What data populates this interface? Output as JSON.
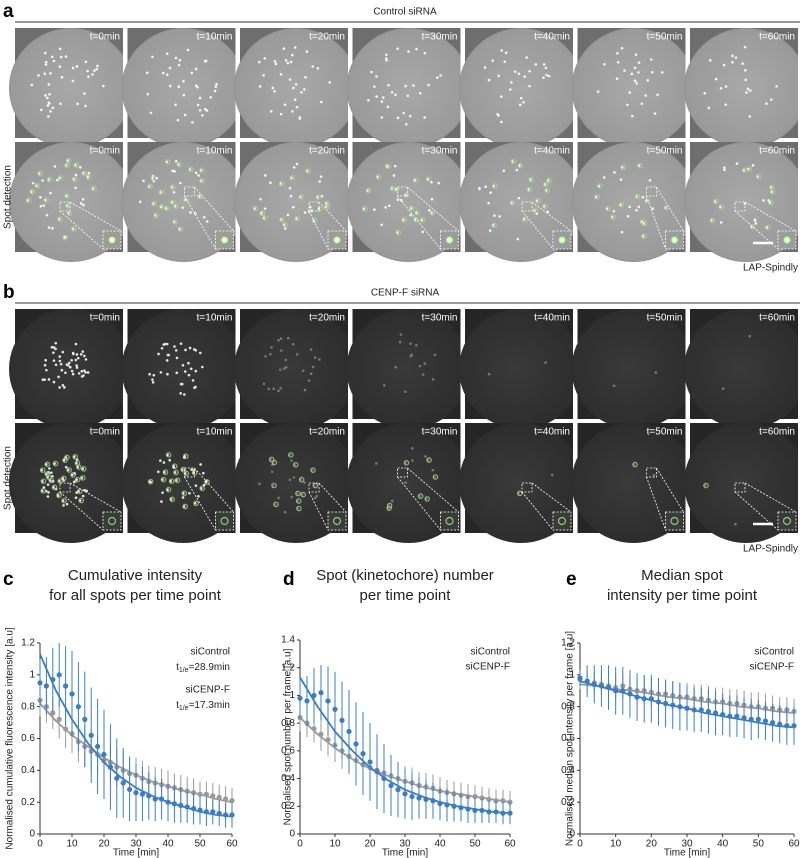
{
  "panels": {
    "a": {
      "label": "a",
      "title": "Control siRNA",
      "row_label": "Spot detection",
      "times": [
        "t=0min",
        "t=10min",
        "t=20min",
        "t=30min",
        "t=40min",
        "t=50min",
        "t=60min"
      ],
      "caption": "LAP-Spindly"
    },
    "b": {
      "label": "b",
      "title": "CENP-F siRNA",
      "row_label": "Spot detection",
      "times": [
        "t=0min",
        "t=10min",
        "t=20min",
        "t=30min",
        "t=40min",
        "t=50min",
        "t=60min"
      ],
      "caption": "LAP-Spindly"
    }
  },
  "chart_data": [
    {
      "type": "scatter",
      "label": "c",
      "title_lines": [
        "Cumulative intensity",
        "for all spots per time point"
      ],
      "xlabel": "Time [min]",
      "ylabel": "Normalised cumulative fluorescence intensity [a.u]",
      "xlim": [
        0,
        60
      ],
      "xticks": [
        0,
        10,
        20,
        30,
        40,
        50,
        60
      ],
      "ylim": [
        0,
        1.2
      ],
      "yticks": [
        0,
        0.2,
        0.4,
        0.6,
        0.8,
        1,
        1.2
      ],
      "x": [
        0,
        2,
        4,
        6,
        8,
        10,
        12,
        14,
        16,
        18,
        20,
        22,
        24,
        26,
        28,
        30,
        32,
        34,
        36,
        38,
        40,
        42,
        44,
        46,
        48,
        50,
        52,
        54,
        56,
        58,
        60
      ],
      "fit_x": [
        0,
        5,
        10,
        15,
        20,
        25,
        30,
        35,
        40,
        45,
        50,
        55,
        60
      ],
      "series": [
        {
          "name": "siControl",
          "color": "#9a9a9a",
          "half_life": {
            "symbol": "t",
            "subscript": "1/e",
            "text": "=28.9min"
          },
          "values": [
            0.84,
            0.8,
            0.76,
            0.72,
            0.66,
            0.63,
            0.58,
            0.55,
            0.52,
            0.5,
            0.46,
            0.45,
            0.42,
            0.4,
            0.38,
            0.37,
            0.35,
            0.33,
            0.32,
            0.31,
            0.3,
            0.29,
            0.28,
            0.27,
            0.26,
            0.25,
            0.25,
            0.24,
            0.23,
            0.22,
            0.21
          ],
          "errors": [
            0.1,
            0.1,
            0.1,
            0.12,
            0.12,
            0.12,
            0.13,
            0.13,
            0.13,
            0.12,
            0.12,
            0.12,
            0.12,
            0.12,
            0.11,
            0.11,
            0.11,
            0.1,
            0.1,
            0.1,
            0.1,
            0.09,
            0.09,
            0.09,
            0.09,
            0.08,
            0.08,
            0.08,
            0.08,
            0.08,
            0.08
          ],
          "fit": [
            0.82,
            0.71,
            0.62,
            0.55,
            0.48,
            0.42,
            0.37,
            0.33,
            0.3,
            0.27,
            0.25,
            0.22,
            0.2
          ]
        },
        {
          "name": "siCENP-F",
          "color": "#3b7cc4",
          "half_life": {
            "symbol": "t",
            "subscript": "1/e",
            "text": "=17.3min"
          },
          "values": [
            0.95,
            0.93,
            0.97,
            1.0,
            0.93,
            0.88,
            0.8,
            0.72,
            0.62,
            0.55,
            0.5,
            0.42,
            0.35,
            0.32,
            0.28,
            0.26,
            0.25,
            0.24,
            0.22,
            0.22,
            0.2,
            0.19,
            0.18,
            0.17,
            0.16,
            0.15,
            0.14,
            0.14,
            0.13,
            0.12,
            0.12
          ],
          "errors": [
            0.15,
            0.18,
            0.2,
            0.2,
            0.25,
            0.27,
            0.28,
            0.3,
            0.3,
            0.3,
            0.28,
            0.27,
            0.25,
            0.22,
            0.2,
            0.18,
            0.17,
            0.15,
            0.14,
            0.13,
            0.12,
            0.12,
            0.11,
            0.1,
            0.1,
            0.09,
            0.09,
            0.08,
            0.08,
            0.08,
            0.08
          ],
          "fit": [
            1.13,
            0.9,
            0.72,
            0.57,
            0.45,
            0.36,
            0.29,
            0.24,
            0.2,
            0.17,
            0.14,
            0.12,
            0.11
          ]
        }
      ]
    },
    {
      "type": "scatter",
      "label": "d",
      "title_lines": [
        "Spot (kinetochore) number",
        "per time point"
      ],
      "xlabel": "Time [min]",
      "ylabel": "Normalised spot number per frame [a.u]",
      "xlim": [
        0,
        60
      ],
      "xticks": [
        0,
        10,
        20,
        30,
        40,
        50,
        60
      ],
      "ylim": [
        0,
        1.4
      ],
      "yticks": [
        0,
        0.2,
        0.4,
        0.6,
        0.8,
        1,
        1.2,
        1.4
      ],
      "x": [
        0,
        2,
        4,
        6,
        8,
        10,
        12,
        14,
        16,
        18,
        20,
        22,
        24,
        26,
        28,
        30,
        32,
        34,
        36,
        38,
        40,
        42,
        44,
        46,
        48,
        50,
        52,
        54,
        56,
        58,
        60
      ],
      "fit_x": [
        0,
        5,
        10,
        15,
        20,
        25,
        30,
        35,
        40,
        45,
        50,
        55,
        60
      ],
      "series": [
        {
          "name": "siControl",
          "color": "#9a9a9a",
          "values": [
            0.84,
            0.8,
            0.76,
            0.72,
            0.68,
            0.64,
            0.6,
            0.56,
            0.53,
            0.5,
            0.48,
            0.46,
            0.44,
            0.42,
            0.4,
            0.38,
            0.37,
            0.35,
            0.34,
            0.33,
            0.31,
            0.3,
            0.29,
            0.28,
            0.27,
            0.27,
            0.26,
            0.25,
            0.24,
            0.24,
            0.23
          ],
          "errors": [
            0.1,
            0.1,
            0.1,
            0.12,
            0.12,
            0.12,
            0.13,
            0.13,
            0.13,
            0.12,
            0.12,
            0.12,
            0.12,
            0.12,
            0.11,
            0.11,
            0.11,
            0.1,
            0.1,
            0.1,
            0.1,
            0.09,
            0.09,
            0.09,
            0.09,
            0.08,
            0.08,
            0.08,
            0.08,
            0.08,
            0.08
          ],
          "fit": [
            0.84,
            0.72,
            0.62,
            0.54,
            0.47,
            0.42,
            0.38,
            0.34,
            0.31,
            0.29,
            0.27,
            0.25,
            0.23
          ]
        },
        {
          "name": "siCENP-F",
          "color": "#3b7cc4",
          "values": [
            0.98,
            0.96,
            1.0,
            1.02,
            0.96,
            0.9,
            0.82,
            0.74,
            0.65,
            0.58,
            0.52,
            0.45,
            0.4,
            0.35,
            0.32,
            0.29,
            0.27,
            0.26,
            0.25,
            0.24,
            0.22,
            0.21,
            0.2,
            0.19,
            0.18,
            0.17,
            0.17,
            0.16,
            0.16,
            0.15,
            0.15
          ],
          "errors": [
            0.15,
            0.18,
            0.2,
            0.2,
            0.25,
            0.27,
            0.28,
            0.3,
            0.3,
            0.3,
            0.28,
            0.27,
            0.25,
            0.22,
            0.2,
            0.18,
            0.17,
            0.15,
            0.14,
            0.13,
            0.12,
            0.12,
            0.11,
            0.1,
            0.1,
            0.09,
            0.09,
            0.08,
            0.08,
            0.08,
            0.08
          ],
          "fit": [
            1.13,
            0.92,
            0.74,
            0.6,
            0.48,
            0.39,
            0.32,
            0.27,
            0.23,
            0.2,
            0.18,
            0.16,
            0.15
          ]
        }
      ]
    },
    {
      "type": "scatter",
      "label": "e",
      "title_lines": [
        "Median spot",
        "intensity per time point"
      ],
      "xlabel": "Time [min]",
      "ylabel": "Normalised median spot intensity per frame [a.u]",
      "xlim": [
        0,
        60
      ],
      "xticks": [
        0,
        10,
        20,
        30,
        40,
        50,
        60
      ],
      "ylim": [
        0,
        1.2
      ],
      "yticks": [
        0,
        0.2,
        0.4,
        0.6,
        0.8,
        1,
        1.2
      ],
      "x": [
        0,
        2,
        4,
        6,
        8,
        10,
        12,
        14,
        16,
        18,
        20,
        22,
        24,
        26,
        28,
        30,
        32,
        34,
        36,
        38,
        40,
        42,
        44,
        46,
        48,
        50,
        52,
        54,
        56,
        58,
        60
      ],
      "fit_x": [
        0,
        5,
        10,
        15,
        20,
        25,
        30,
        35,
        40,
        45,
        50,
        55,
        60
      ],
      "series": [
        {
          "name": "siControl",
          "color": "#9a9a9a",
          "values": [
            0.97,
            0.96,
            0.95,
            0.94,
            0.93,
            0.92,
            0.93,
            0.91,
            0.9,
            0.9,
            0.89,
            0.88,
            0.88,
            0.87,
            0.86,
            0.86,
            0.85,
            0.85,
            0.84,
            0.83,
            0.83,
            0.82,
            0.82,
            0.81,
            0.8,
            0.8,
            0.79,
            0.79,
            0.78,
            0.78,
            0.77
          ],
          "errors": [
            0.06,
            0.06,
            0.07,
            0.07,
            0.08,
            0.08,
            0.08,
            0.08,
            0.08,
            0.09,
            0.09,
            0.09,
            0.09,
            0.09,
            0.09,
            0.09,
            0.09,
            0.09,
            0.09,
            0.09,
            0.09,
            0.09,
            0.09,
            0.09,
            0.09,
            0.09,
            0.09,
            0.08,
            0.08,
            0.08,
            0.08
          ],
          "fit": [
            0.94,
            0.93,
            0.91,
            0.9,
            0.88,
            0.86,
            0.85,
            0.83,
            0.82,
            0.8,
            0.79,
            0.77,
            0.76
          ]
        },
        {
          "name": "siCENP-F",
          "color": "#3b7cc4",
          "values": [
            0.98,
            0.96,
            0.94,
            0.93,
            0.92,
            0.9,
            0.9,
            0.88,
            0.86,
            0.85,
            0.85,
            0.83,
            0.82,
            0.81,
            0.8,
            0.79,
            0.78,
            0.78,
            0.77,
            0.76,
            0.75,
            0.74,
            0.74,
            0.73,
            0.72,
            0.72,
            0.71,
            0.7,
            0.69,
            0.68,
            0.68
          ],
          "errors": [
            0.05,
            0.1,
            0.12,
            0.13,
            0.14,
            0.15,
            0.15,
            0.15,
            0.15,
            0.15,
            0.15,
            0.15,
            0.15,
            0.15,
            0.15,
            0.14,
            0.14,
            0.14,
            0.14,
            0.14,
            0.13,
            0.13,
            0.13,
            0.13,
            0.13,
            0.12,
            0.12,
            0.12,
            0.12,
            0.12,
            0.12
          ],
          "fit": [
            0.96,
            0.93,
            0.9,
            0.87,
            0.84,
            0.81,
            0.79,
            0.76,
            0.74,
            0.72,
            0.7,
            0.68,
            0.67
          ]
        }
      ]
    }
  ]
}
